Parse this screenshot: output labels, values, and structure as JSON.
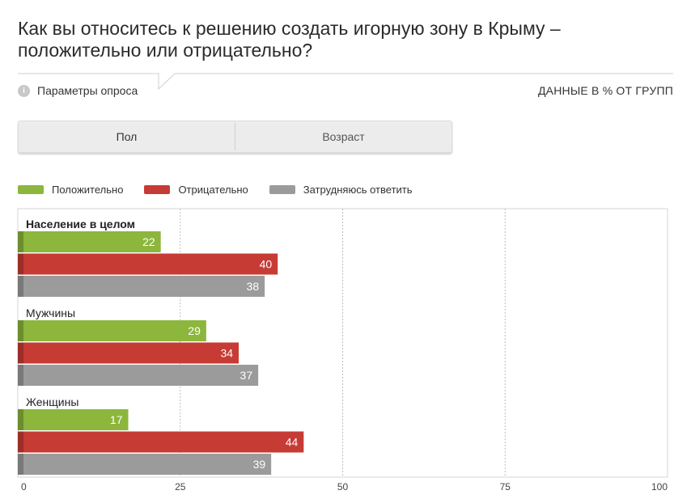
{
  "title": "Как вы относитесь к решению создать игорную зону в Крыму – положительно или отрицательно?",
  "params_label": "Параметры опроса",
  "info_icon": "info-icon",
  "units_label": "ДАННЫЕ В % ОТ ГРУПП",
  "tabs": [
    {
      "label": "Пол",
      "active": true
    },
    {
      "label": "Возраст",
      "active": false
    }
  ],
  "colors": {
    "positive": "#8cb63c",
    "negative": "#c73b35",
    "undecided": "#9b9b9b",
    "grid": "#bdbdbd"
  },
  "chart_data": {
    "type": "bar",
    "orientation": "horizontal",
    "categories": [
      "Население в целом",
      "Мужчины",
      "Женщины"
    ],
    "series": [
      {
        "name": "Положительно",
        "values": [
          22,
          29,
          17
        ]
      },
      {
        "name": "Отрицательно",
        "values": [
          40,
          34,
          44
        ]
      },
      {
        "name": "Затрудняюсь ответить",
        "values": [
          38,
          37,
          39
        ]
      }
    ],
    "xlim": [
      0,
      100
    ],
    "xticks": [
      "0",
      "25",
      "50",
      "75",
      "100"
    ],
    "data_labels": true,
    "grid": true,
    "legend_position": "top-left"
  }
}
